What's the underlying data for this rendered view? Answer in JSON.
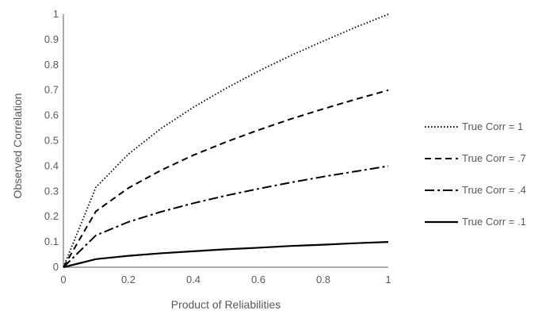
{
  "chart_data": {
    "type": "line",
    "title": "",
    "xlabel": "Product of Reliabilities",
    "ylabel": "Observed Correlation",
    "xlim": [
      0,
      1
    ],
    "ylim": [
      0,
      1
    ],
    "x_ticks": [
      "0",
      "0.2",
      "0.4",
      "0.6",
      "0.8",
      "1"
    ],
    "y_ticks": [
      "0",
      "0.1",
      "0.2",
      "0.3",
      "0.4",
      "0.5",
      "0.6",
      "0.7",
      "0.8",
      "0.9",
      "1"
    ],
    "grid": {
      "horizontal": false,
      "vertical": false
    },
    "legend_position": "right",
    "x": [
      0,
      0.1,
      0.2,
      0.3,
      0.4,
      0.5,
      0.6,
      0.7,
      0.8,
      0.9,
      1.0
    ],
    "series": [
      {
        "name": "True Corr = 1",
        "style": "dotted",
        "values": [
          0,
          0.316,
          0.447,
          0.548,
          0.632,
          0.707,
          0.775,
          0.837,
          0.894,
          0.949,
          1.0
        ]
      },
      {
        "name": "True Corr = .7",
        "style": "dashed",
        "values": [
          0,
          0.221,
          0.313,
          0.383,
          0.443,
          0.495,
          0.542,
          0.586,
          0.626,
          0.664,
          0.7
        ]
      },
      {
        "name": "True Corr = .4",
        "style": "dash-dot",
        "values": [
          0,
          0.126,
          0.179,
          0.219,
          0.253,
          0.283,
          0.31,
          0.335,
          0.358,
          0.379,
          0.4
        ]
      },
      {
        "name": "True Corr = .1",
        "style": "solid",
        "values": [
          0,
          0.032,
          0.045,
          0.055,
          0.063,
          0.071,
          0.077,
          0.084,
          0.089,
          0.095,
          0.1
        ]
      }
    ],
    "line_color": "#000000",
    "axis_color": "#595959",
    "text_color": "#595959"
  }
}
